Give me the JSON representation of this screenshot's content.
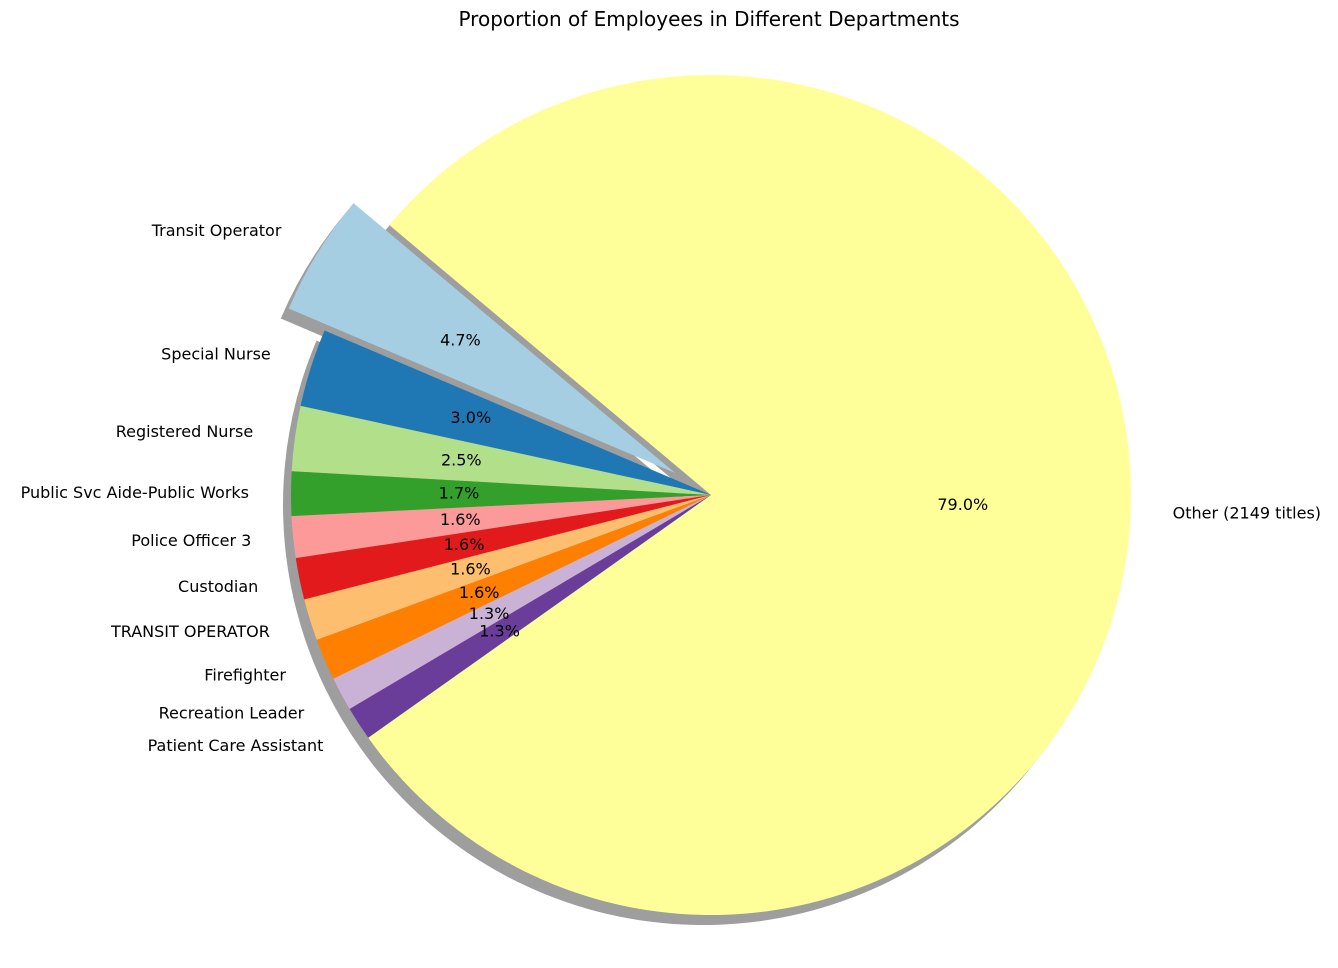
{
  "chart_data": {
    "type": "pie",
    "title": "Proportion of Employees in Different Departments",
    "slices": [
      {
        "label": "Transit Operator",
        "value": 4.7,
        "pct_label": "4.7%",
        "color": "#a6cee3",
        "exploded": true
      },
      {
        "label": "Special Nurse",
        "value": 3.0,
        "pct_label": "3.0%",
        "color": "#1f78b4"
      },
      {
        "label": "Registered Nurse",
        "value": 2.5,
        "pct_label": "2.5%",
        "color": "#b2df8a"
      },
      {
        "label": "Public Svc Aide-Public Works",
        "value": 1.7,
        "pct_label": "1.7%",
        "color": "#33a02c"
      },
      {
        "label": "Police Officer 3",
        "value": 1.6,
        "pct_label": "1.6%",
        "color": "#fb9a99"
      },
      {
        "label": "Custodian",
        "value": 1.6,
        "pct_label": "1.6%",
        "color": "#e31a1c"
      },
      {
        "label": "TRANSIT OPERATOR",
        "value": 1.6,
        "pct_label": "1.6%",
        "color": "#fdbf6f"
      },
      {
        "label": "Firefighter",
        "value": 1.6,
        "pct_label": "1.6%",
        "color": "#ff7f00"
      },
      {
        "label": "Recreation Leader",
        "value": 1.3,
        "pct_label": "1.3%",
        "color": "#cab2d6"
      },
      {
        "label": "Patient Care Assistant",
        "value": 1.3,
        "pct_label": "1.3%",
        "color": "#6a3d9a"
      },
      {
        "label": "Other (2149 titles)",
        "value": 79.0,
        "pct_label": "79.0%",
        "color": "#ffff99"
      }
    ],
    "start_angle_deg": 140,
    "direction": "counterclockwise",
    "shadow": true,
    "legend": "none"
  }
}
